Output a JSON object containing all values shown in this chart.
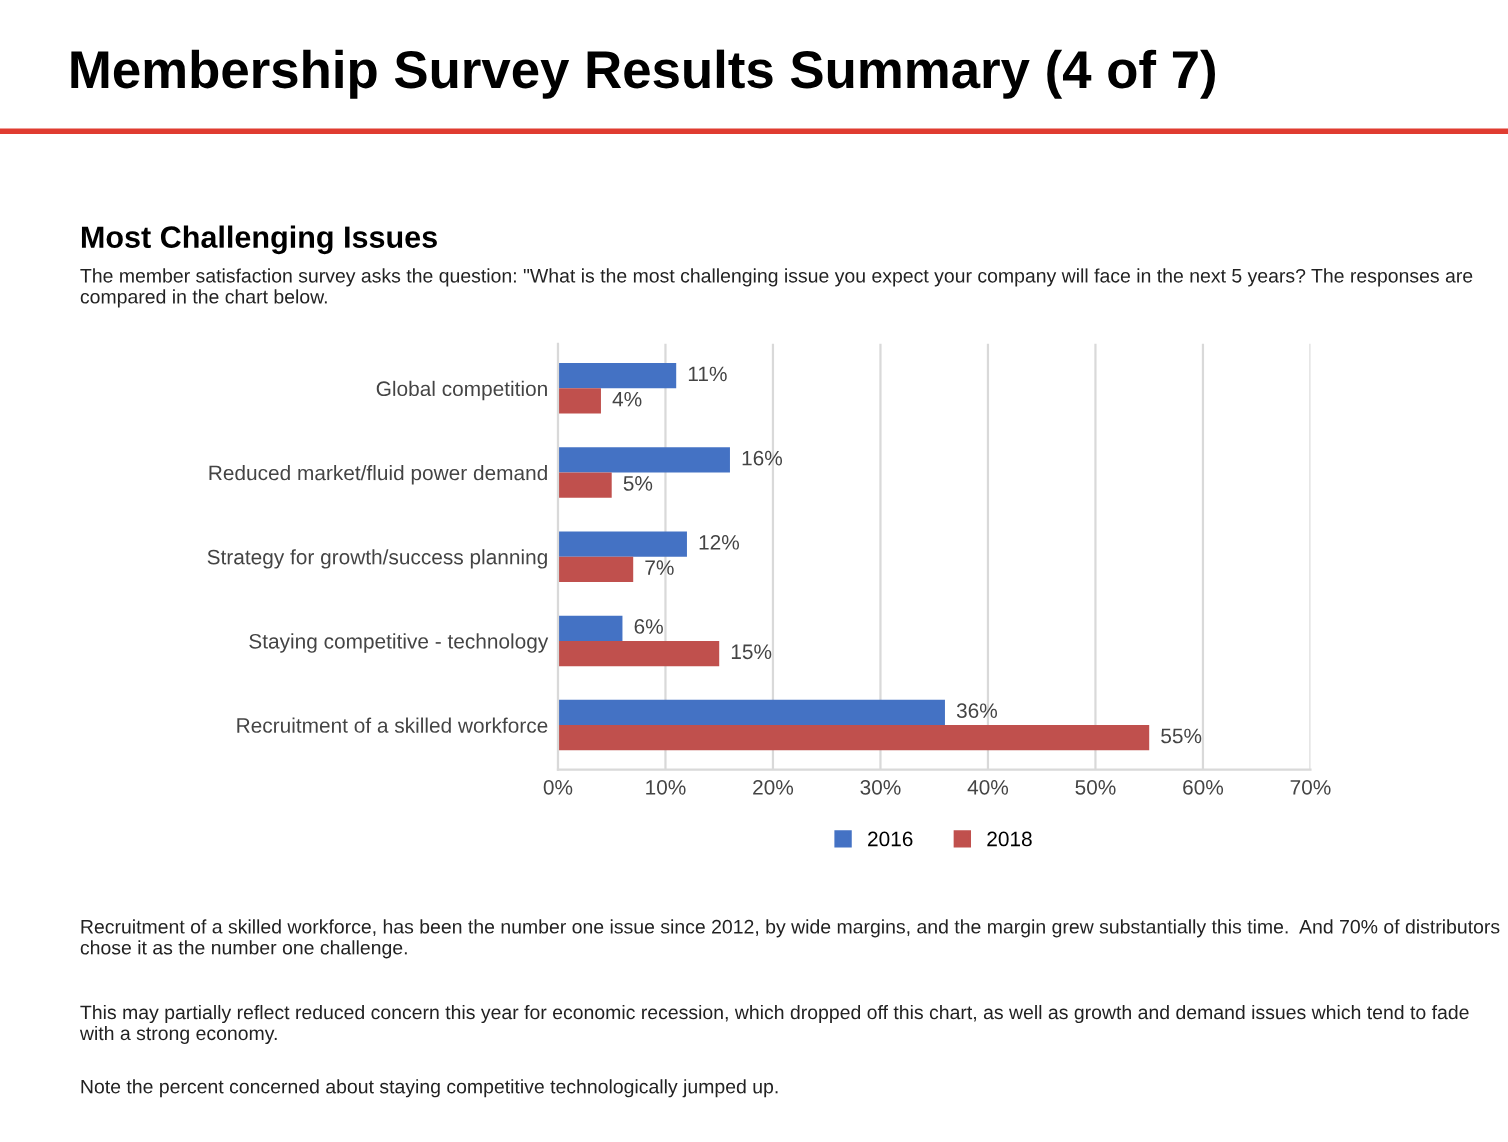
{
  "chart_data": {
    "type": "bar",
    "orientation": "horizontal",
    "title": "Membership Survey Results Summary (4 of 7)",
    "subtitle": "Most Challenging Issues",
    "annotations": [
      "The member satisfaction survey asks the question: \"What is the most challenging issue you expect your company will face in the next 5 years? The responses are compared in the chart below.",
      "Recruitment of a skilled workforce, has been the number one issue since 2012, by wide margins, and the margin grew substantially this time.  And 70% of distributors chose it as the number one challenge.",
      "This may partially reflect reduced concern this year for economic recession, which dropped off this chart, as well as growth and demand issues which tend to fade with a strong economy.",
      "Note the percent concerned about staying competitive technologically jumped up."
    ],
    "categories": [
      "Global competition",
      "Reduced market/fluid power demand",
      "Strategy for growth/success planning",
      "Staying competitive - technology",
      "Recruitment of a skilled workforce"
    ],
    "series": [
      {
        "name": "2016",
        "color": "#4472c4",
        "values": [
          11,
          16,
          12,
          6,
          36
        ],
        "value_labels": [
          "11%",
          "16%",
          "12%",
          "6%",
          "36%"
        ]
      },
      {
        "name": "2018",
        "color": "#c0504d",
        "values": [
          4,
          5,
          7,
          15,
          55
        ],
        "value_labels": [
          "4%",
          "5%",
          "7%",
          "15%",
          "55%"
        ]
      }
    ],
    "xlim": [
      0,
      70
    ],
    "xticks": [
      {
        "value": 0,
        "label": "0%"
      },
      {
        "value": 10,
        "label": "10%"
      },
      {
        "value": 20,
        "label": "20%"
      },
      {
        "value": 30,
        "label": "30%"
      },
      {
        "value": 40,
        "label": "40%"
      },
      {
        "value": 50,
        "label": "50%"
      },
      {
        "value": 60,
        "label": "60%"
      },
      {
        "value": 70,
        "label": "70%"
      }
    ],
    "grid": "x",
    "legend": "bottom"
  }
}
